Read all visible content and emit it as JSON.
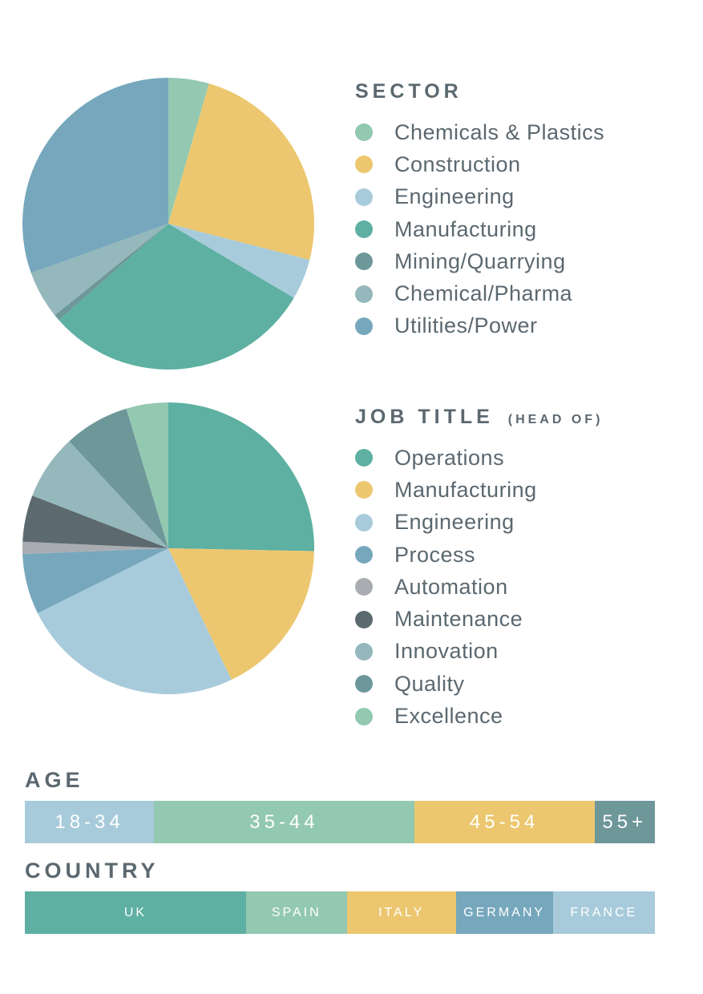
{
  "chart_data": [
    {
      "type": "pie",
      "title": "SECTOR",
      "categories": [
        "Chemicals & Plastics",
        "Construction",
        "Engineering",
        "Manufacturing",
        "Mining/Quarrying",
        "Chemical/Pharma",
        "Utilities/Power"
      ],
      "values": [
        4.5,
        24.5,
        4.5,
        30.0,
        0.7,
        5.3,
        30.5
      ],
      "colors": [
        "#93c8b1",
        "#ecc76f",
        "#a8cbdb",
        "#5db0a2",
        "#6e979a",
        "#94b8bb",
        "#76a7bd"
      ],
      "legend": "right"
    },
    {
      "type": "pie",
      "title": "JOB TITLE",
      "subtitle": "(HEAD OF)",
      "categories": [
        "Operations",
        "Manufacturing",
        "Engineering",
        "Process",
        "Automation",
        "Maintenance",
        "Innovation",
        "Quality",
        "Excellence"
      ],
      "values": [
        24.5,
        17.0,
        24.0,
        6.5,
        1.3,
        5.0,
        7.0,
        7.0,
        4.5
      ],
      "colors": [
        "#5db0a2",
        "#ecc76f",
        "#a8cbdb",
        "#76a7bd",
        "#a9adb1",
        "#5c6a70",
        "#94b8bb",
        "#6e979a",
        "#93c8b1"
      ],
      "legend": "right"
    },
    {
      "type": "bar",
      "orientation": "horizontal-stacked",
      "title": "AGE",
      "categories": [
        "18-34",
        "35-44",
        "45-54",
        "55+"
      ],
      "values": [
        20.5,
        41.3,
        28.6,
        9.6
      ],
      "colors": [
        "#a8cbdb",
        "#93c8b1",
        "#ecc76f",
        "#6e979a"
      ]
    },
    {
      "type": "bar",
      "orientation": "horizontal-stacked",
      "title": "COUNTRY",
      "categories": [
        "UK",
        "SPAIN",
        "ITALY",
        "GERMANY",
        "FRANCE"
      ],
      "values": [
        35.1,
        16.0,
        17.3,
        15.4,
        16.2
      ],
      "colors": [
        "#5db0a2",
        "#93c8b1",
        "#ecc76f",
        "#76a7bd",
        "#a8cbdb"
      ]
    }
  ]
}
